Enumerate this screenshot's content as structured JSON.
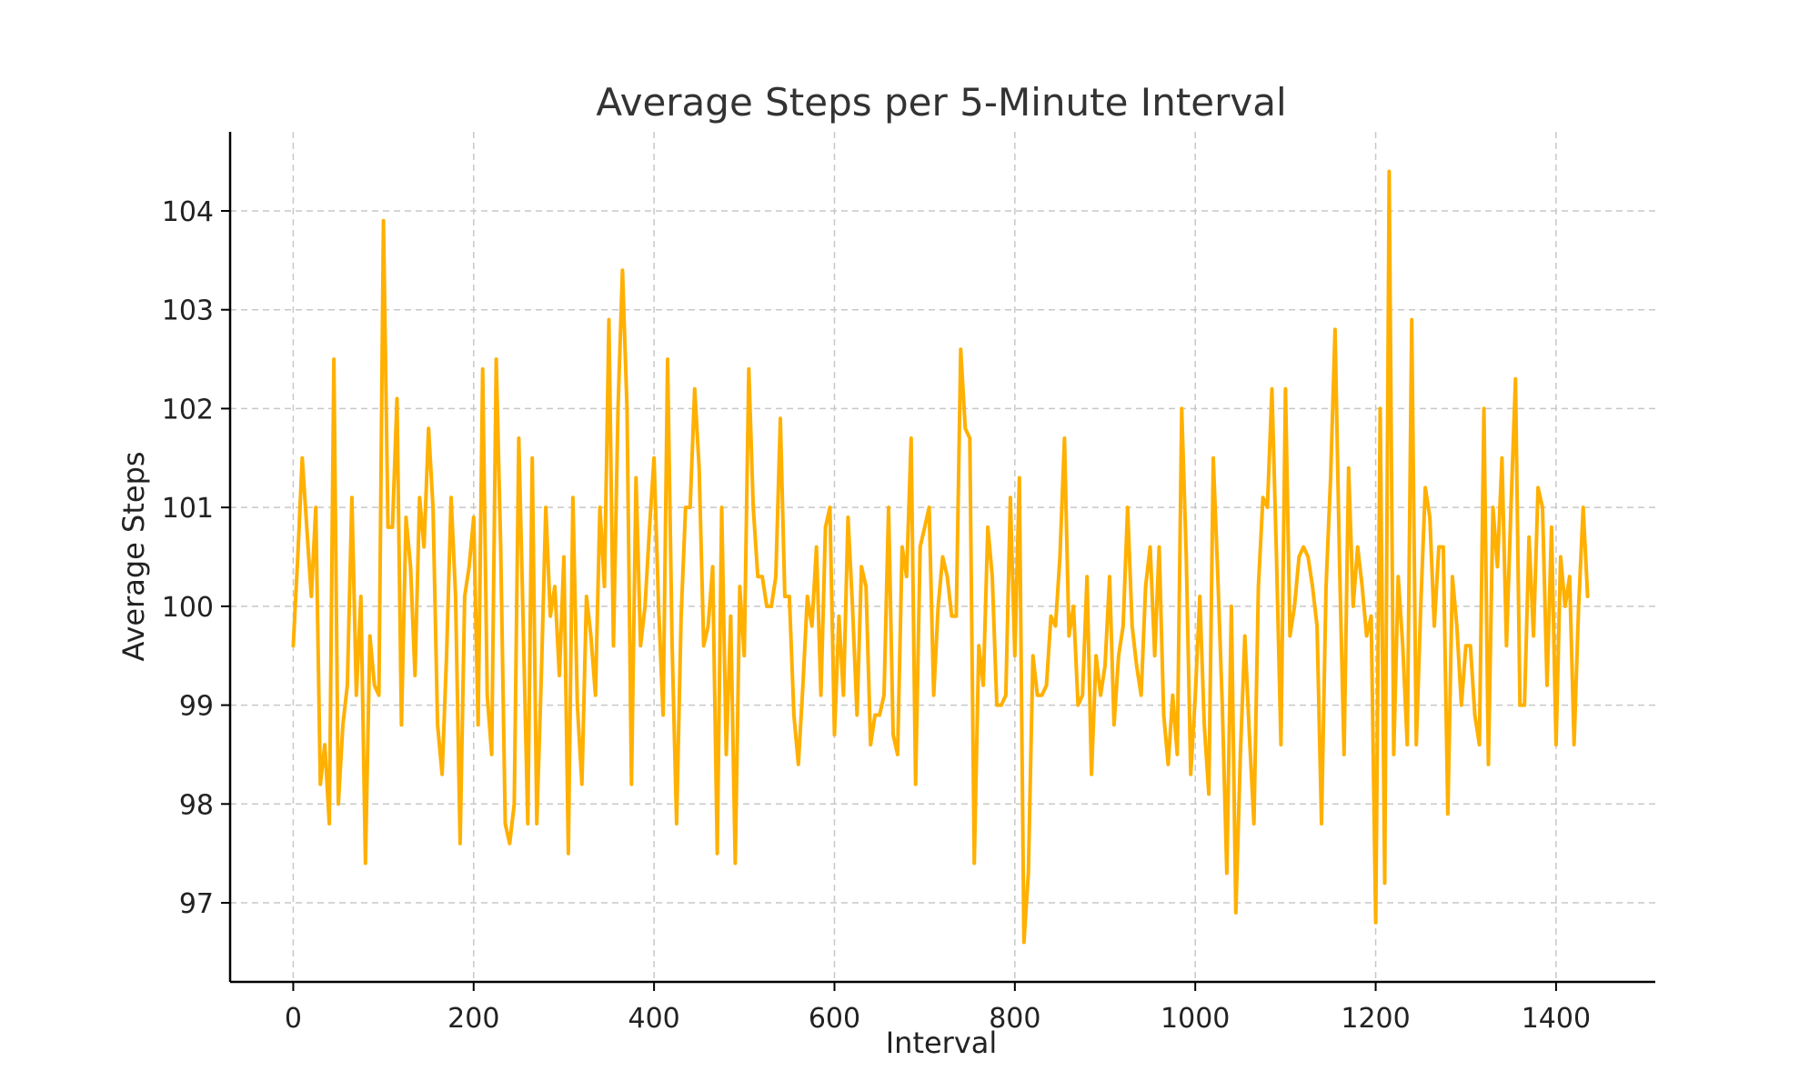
{
  "chart_data": {
    "type": "line",
    "title": "Average Steps per 5-Minute Interval",
    "xlabel": "Interval",
    "ylabel": "Average Steps",
    "xlim": [
      -70,
      1510
    ],
    "ylim": [
      96.2,
      104.8
    ],
    "xticks": [
      0,
      200,
      400,
      600,
      800,
      1000,
      1200,
      1400
    ],
    "yticks": [
      97,
      98,
      99,
      100,
      101,
      102,
      103,
      104
    ],
    "grid": true,
    "line_color": "#ffb000",
    "series": [
      {
        "x": [
          0,
          5,
          10,
          15,
          20,
          25,
          30,
          35,
          40,
          45,
          50,
          55,
          60,
          65,
          70,
          75,
          80,
          85,
          90,
          95,
          100,
          105,
          110,
          115,
          120,
          125,
          130,
          135,
          140,
          145,
          150,
          155,
          160,
          165,
          170,
          175,
          180,
          185,
          190,
          195,
          200,
          205,
          210,
          215,
          220,
          225,
          230,
          235,
          240,
          245,
          250,
          255,
          260,
          265,
          270,
          275,
          280,
          285,
          290,
          295,
          300,
          305,
          310,
          315,
          320,
          325,
          330,
          335,
          340,
          345,
          350,
          355,
          360,
          365,
          370,
          375,
          380,
          385,
          390,
          395,
          400,
          405,
          410,
          415,
          420,
          425,
          430,
          435,
          440,
          445,
          450,
          455,
          460,
          465,
          470,
          475,
          480,
          485,
          490,
          495,
          500,
          505,
          510,
          515,
          520,
          525,
          530,
          535,
          540,
          545,
          550,
          555,
          560,
          565,
          570,
          575,
          580,
          585,
          590,
          595,
          600,
          605,
          610,
          615,
          620,
          625,
          630,
          635,
          640,
          645,
          650,
          655,
          660,
          665,
          670,
          675,
          680,
          685,
          690,
          695,
          700,
          705,
          710,
          715,
          720,
          725,
          730,
          735,
          740,
          745,
          750,
          755,
          760,
          765,
          770,
          775,
          780,
          785,
          790,
          795,
          800,
          805,
          810,
          815,
          820,
          825,
          830,
          835,
          840,
          845,
          850,
          855,
          860,
          865,
          870,
          875,
          880,
          885,
          890,
          895,
          900,
          905,
          910,
          915,
          920,
          925,
          930,
          935,
          940,
          945,
          950,
          955,
          960,
          965,
          970,
          975,
          980,
          985,
          990,
          995,
          1000,
          1005,
          1010,
          1015,
          1020,
          1025,
          1030,
          1035,
          1040,
          1045,
          1050,
          1055,
          1060,
          1065,
          1070,
          1075,
          1080,
          1085,
          1090,
          1095,
          1100,
          1105,
          1110,
          1115,
          1120,
          1125,
          1130,
          1135,
          1140,
          1145,
          1150,
          1155,
          1160,
          1165,
          1170,
          1175,
          1180,
          1185,
          1190,
          1195,
          1200,
          1205,
          1210,
          1215,
          1220,
          1225,
          1230,
          1235,
          1240,
          1245,
          1250,
          1255,
          1260,
          1265,
          1270,
          1275,
          1280,
          1285,
          1290,
          1295,
          1300,
          1305,
          1310,
          1315,
          1320,
          1325,
          1330,
          1335,
          1340,
          1345,
          1350,
          1355,
          1360,
          1365,
          1370,
          1375,
          1380,
          1385,
          1390,
          1395,
          1400,
          1405,
          1410,
          1415,
          1420,
          1425,
          1430,
          1435
        ],
        "values": [
          99.6,
          100.5,
          101.5,
          100.8,
          100.1,
          101.0,
          98.2,
          98.6,
          97.8,
          102.5,
          98.0,
          98.8,
          99.2,
          101.1,
          99.1,
          100.1,
          97.4,
          99.7,
          99.2,
          99.1,
          103.9,
          100.8,
          100.8,
          102.1,
          98.8,
          100.9,
          100.4,
          99.3,
          101.1,
          100.6,
          101.8,
          101.0,
          98.8,
          98.3,
          99.5,
          101.1,
          100.1,
          97.6,
          100.1,
          100.4,
          100.9,
          98.8,
          102.4,
          99.1,
          98.5,
          102.5,
          100.6,
          97.8,
          97.6,
          98.0,
          101.7,
          99.8,
          97.8,
          101.5,
          97.8,
          99.3,
          101.0,
          99.9,
          100.2,
          99.3,
          100.5,
          97.5,
          101.1,
          99.0,
          98.2,
          100.1,
          99.7,
          99.1,
          101.0,
          100.2,
          102.9,
          99.6,
          102.0,
          103.4,
          102.0,
          98.2,
          101.3,
          99.6,
          100.0,
          100.8,
          101.5,
          100.0,
          98.9,
          102.5,
          99.6,
          97.8,
          99.9,
          101.0,
          101.0,
          102.2,
          101.4,
          99.6,
          99.8,
          100.4,
          97.5,
          101.0,
          98.5,
          99.9,
          97.4,
          100.2,
          99.5,
          102.4,
          101.0,
          100.3,
          100.3,
          100.0,
          100.0,
          100.3,
          101.9,
          100.1,
          100.1,
          98.9,
          98.4,
          99.2,
          100.1,
          99.8,
          100.6,
          99.1,
          100.8,
          101.0,
          98.7,
          99.9,
          99.1,
          100.9,
          100.0,
          98.9,
          100.4,
          100.2,
          98.6,
          98.9,
          98.9,
          99.1,
          101.0,
          98.7,
          98.5,
          100.6,
          100.3,
          101.7,
          98.2,
          100.6,
          100.8,
          101.0,
          99.1,
          100.0,
          100.5,
          100.3,
          99.9,
          99.9,
          102.6,
          101.8,
          101.7,
          97.4,
          99.6,
          99.2,
          100.8,
          100.3,
          99.0,
          99.0,
          99.1,
          101.1,
          99.5,
          101.3,
          96.6,
          97.3,
          99.5,
          99.1,
          99.1,
          99.2,
          99.9,
          99.8,
          100.5,
          101.7,
          99.7,
          100.0,
          99.0,
          99.1,
          100.3,
          98.3,
          99.5,
          99.1,
          99.4,
          100.3,
          98.8,
          99.5,
          99.8,
          101.0,
          99.8,
          99.4,
          99.1,
          100.2,
          100.6,
          99.5,
          100.6,
          98.9,
          98.4,
          99.1,
          98.5,
          102.0,
          100.5,
          98.3,
          99.1,
          100.1,
          98.8,
          98.1,
          101.5,
          100.3,
          99.0,
          97.3,
          100.0,
          96.9,
          98.5,
          99.7,
          98.7,
          97.8,
          100.2,
          101.1,
          101.0,
          102.2,
          100.5,
          98.6,
          102.2,
          99.7,
          100.0,
          100.5,
          100.6,
          100.5,
          100.2,
          99.8,
          97.8,
          100.2,
          101.3,
          102.8,
          100.4,
          98.5,
          101.4,
          100.0,
          100.6,
          100.2,
          99.7,
          99.9,
          96.8,
          102.0,
          97.2,
          104.4,
          98.5,
          100.3,
          99.6,
          98.6,
          102.9,
          98.6,
          100.0,
          101.2,
          100.9,
          99.8,
          100.6,
          100.6,
          97.9,
          100.3,
          99.8,
          99.0,
          99.6,
          99.6,
          98.9,
          98.6,
          102.0,
          98.4,
          101.0,
          100.4,
          101.5,
          99.6,
          101.0,
          102.3,
          99.0,
          99.0,
          100.7,
          99.7,
          101.2,
          101.0,
          99.2,
          100.8,
          98.6,
          100.5,
          100.0,
          100.3,
          98.6,
          100.0,
          101.0,
          100.1
        ]
      }
    ]
  }
}
